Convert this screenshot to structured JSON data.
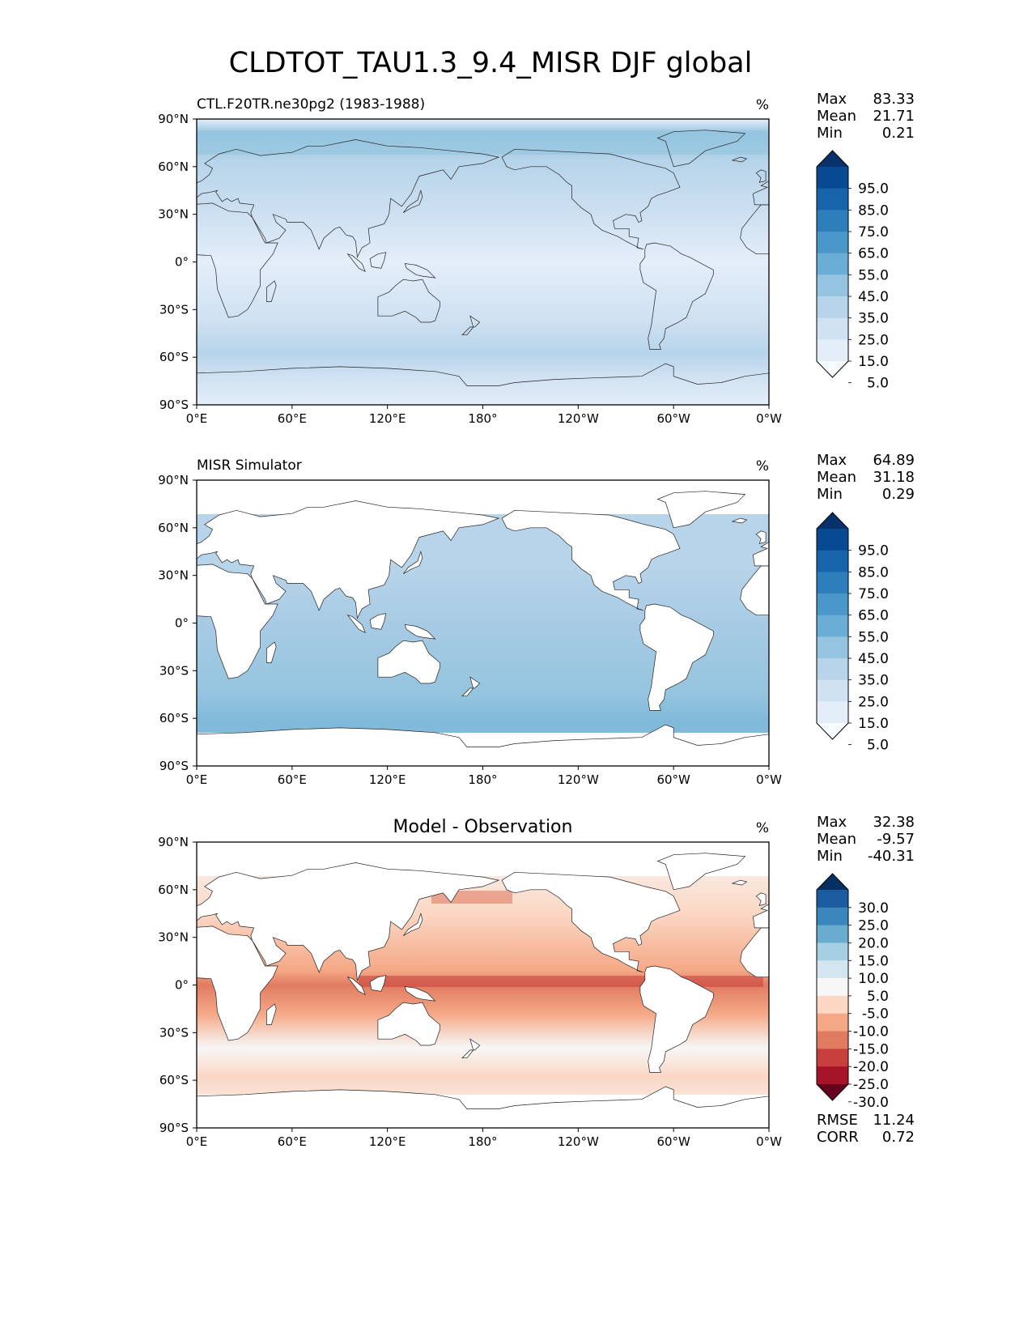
{
  "title": "CLDTOT_TAU1.3_9.4_MISR DJF global",
  "xticks": [
    "0°E",
    "60°E",
    "120°E",
    "180°",
    "120°W",
    "60°W",
    "0°W"
  ],
  "yticks": [
    "90°N",
    "60°N",
    "30°N",
    "0°",
    "30°S",
    "60°S",
    "90°S"
  ],
  "xtick_lons": [
    0,
    60,
    120,
    180,
    240,
    300,
    360
  ],
  "ytick_lats": [
    90,
    60,
    30,
    0,
    -30,
    -60,
    -90
  ],
  "panels": [
    {
      "title": "CTL.F20TR.ne30pg2 (1983-1988)",
      "title_position": "left",
      "units": "%",
      "stats": [
        {
          "label": "Max",
          "value": "83.33"
        },
        {
          "label": "Mean",
          "value": "21.71"
        },
        {
          "label": "Min",
          "value": "0.21"
        }
      ],
      "colorbar": {
        "labels": [
          "95.0",
          "85.0",
          "75.0",
          "65.0",
          "55.0",
          "45.0",
          "35.0",
          "25.0",
          "15.0",
          "5.0"
        ],
        "colors": [
          "#f7fbff",
          "#e3eef9",
          "#d0e1f2",
          "#b7d4ea",
          "#94c4df",
          "#6aaed6",
          "#4a98c9",
          "#2e7ebc",
          "#1764ab",
          "#084a91",
          "#08306b"
        ],
        "levels": [
          5,
          15,
          25,
          35,
          45,
          55,
          65,
          75,
          85,
          95
        ]
      },
      "bottom_stats": []
    },
    {
      "title": "MISR Simulator",
      "title_position": "left",
      "units": "%",
      "stats": [
        {
          "label": "Max",
          "value": "64.89"
        },
        {
          "label": "Mean",
          "value": "31.18"
        },
        {
          "label": "Min",
          "value": "0.29"
        }
      ],
      "colorbar": {
        "labels": [
          "95.0",
          "85.0",
          "75.0",
          "65.0",
          "55.0",
          "45.0",
          "35.0",
          "25.0",
          "15.0",
          "5.0"
        ],
        "colors": [
          "#f7fbff",
          "#e3eef9",
          "#d0e1f2",
          "#b7d4ea",
          "#94c4df",
          "#6aaed6",
          "#4a98c9",
          "#2e7ebc",
          "#1764ab",
          "#084a91",
          "#08306b"
        ],
        "levels": [
          5,
          15,
          25,
          35,
          45,
          55,
          65,
          75,
          85,
          95
        ]
      },
      "bottom_stats": []
    },
    {
      "title": "Model - Observation",
      "title_position": "center",
      "units": "%",
      "stats": [
        {
          "label": "Max",
          "value": "32.38"
        },
        {
          "label": "Mean",
          "value": "-9.57"
        },
        {
          "label": "Min",
          "value": "-40.31"
        }
      ],
      "colorbar": {
        "labels": [
          "30.0",
          "25.0",
          "20.0",
          "15.0",
          "10.0",
          "5.0",
          "-5.0",
          "-10.0",
          "-15.0",
          "-20.0",
          "-25.0",
          "-30.0"
        ],
        "colors": [
          "#67001f",
          "#a51429",
          "#c93f3d",
          "#e07b62",
          "#f5a886",
          "#fbd7c4",
          "#f7f7f7",
          "#d3e6f0",
          "#a6cfe3",
          "#6aaccf",
          "#3b86bc",
          "#1a5c9f",
          "#053061"
        ],
        "levels": [
          -30,
          -25,
          -20,
          -15,
          -10,
          -5,
          5,
          10,
          15,
          20,
          25,
          30
        ]
      },
      "bottom_stats": [
        {
          "label": "RMSE",
          "value": "11.24"
        },
        {
          "label": "CORR",
          "value": "0.72"
        }
      ]
    }
  ],
  "chart_data": [
    {
      "type": "heatmap",
      "title": "CTL.F20TR.ne30pg2 (1983-1988)",
      "variable": "CLDTOT_TAU1.3_9.4_MISR DJF",
      "units": "%",
      "x": "longitude 0°E to 0°W (360)",
      "y": "latitude 90°S to 90°N",
      "xlim": [
        0,
        360
      ],
      "ylim": [
        -90,
        90
      ],
      "levels": [
        5,
        15,
        25,
        35,
        45,
        55,
        65,
        75,
        85,
        95
      ],
      "stats": {
        "max": 83.33,
        "mean": 21.71,
        "min": 0.21
      }
    },
    {
      "type": "heatmap",
      "title": "MISR Simulator",
      "variable": "CLDTOT_TAU1.3_9.4_MISR DJF",
      "units": "%",
      "xlim": [
        0,
        360
      ],
      "ylim": [
        -90,
        90
      ],
      "levels": [
        5,
        15,
        25,
        35,
        45,
        55,
        65,
        75,
        85,
        95
      ],
      "stats": {
        "max": 64.89,
        "mean": 31.18,
        "min": 0.29
      }
    },
    {
      "type": "heatmap",
      "title": "Model - Observation",
      "units": "%",
      "xlim": [
        0,
        360
      ],
      "ylim": [
        -90,
        90
      ],
      "levels": [
        -30,
        -25,
        -20,
        -15,
        -10,
        -5,
        5,
        10,
        15,
        20,
        25,
        30
      ],
      "stats": {
        "max": 32.38,
        "mean": -9.57,
        "min": -40.31,
        "rmse": 11.24,
        "corr": 0.72
      }
    }
  ]
}
